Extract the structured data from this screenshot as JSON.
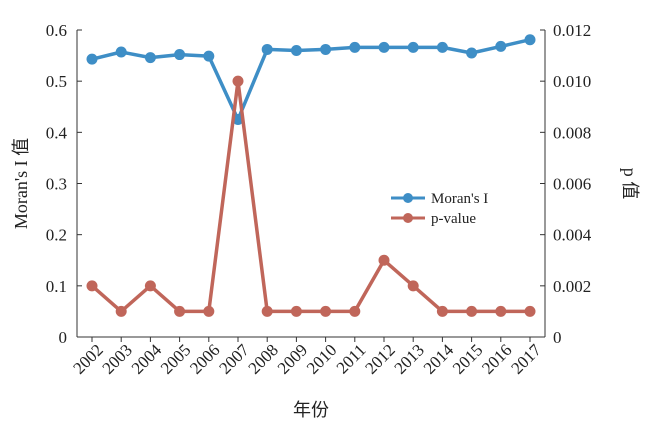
{
  "chart_data": {
    "type": "line",
    "title": "",
    "xlabel": "年份",
    "ylabel_left": "Moran's I 值",
    "ylabel_right": "p 值",
    "categories": [
      "2002",
      "2003",
      "2004",
      "2005",
      "2006",
      "2007",
      "2008",
      "2009",
      "2010",
      "2011",
      "2012",
      "2013",
      "2014",
      "2015",
      "2016",
      "2017"
    ],
    "y_left": {
      "range": [
        0,
        0.6
      ],
      "ticks": [
        "0",
        "0.1",
        "0.2",
        "0.3",
        "0.4",
        "0.5",
        "0.6"
      ],
      "tick_values": [
        0,
        0.1,
        0.2,
        0.3,
        0.4,
        0.5,
        0.6
      ]
    },
    "y_right": {
      "range": [
        0,
        0.012
      ],
      "ticks": [
        "0",
        "0.002",
        "0.004",
        "0.006",
        "0.008",
        "0.010",
        "0.012"
      ],
      "tick_values": [
        0,
        0.002,
        0.004,
        0.006,
        0.008,
        0.01,
        0.012
      ]
    },
    "series": [
      {
        "name": "Moran's I",
        "axis": "left",
        "color": "#3e8ec6",
        "values": [
          0.543,
          0.557,
          0.546,
          0.552,
          0.549,
          0.425,
          0.562,
          0.56,
          0.562,
          0.566,
          0.566,
          0.566,
          0.566,
          0.555,
          0.568,
          0.581
        ]
      },
      {
        "name": "p-value",
        "axis": "right",
        "color": "#c0665a",
        "values": [
          0.002,
          0.001,
          0.002,
          0.001,
          0.001,
          0.01,
          0.001,
          0.001,
          0.001,
          0.001,
          0.003,
          0.002,
          0.001,
          0.001,
          0.001,
          0.001
        ]
      }
    ],
    "grid": false,
    "legend": "center-right"
  }
}
